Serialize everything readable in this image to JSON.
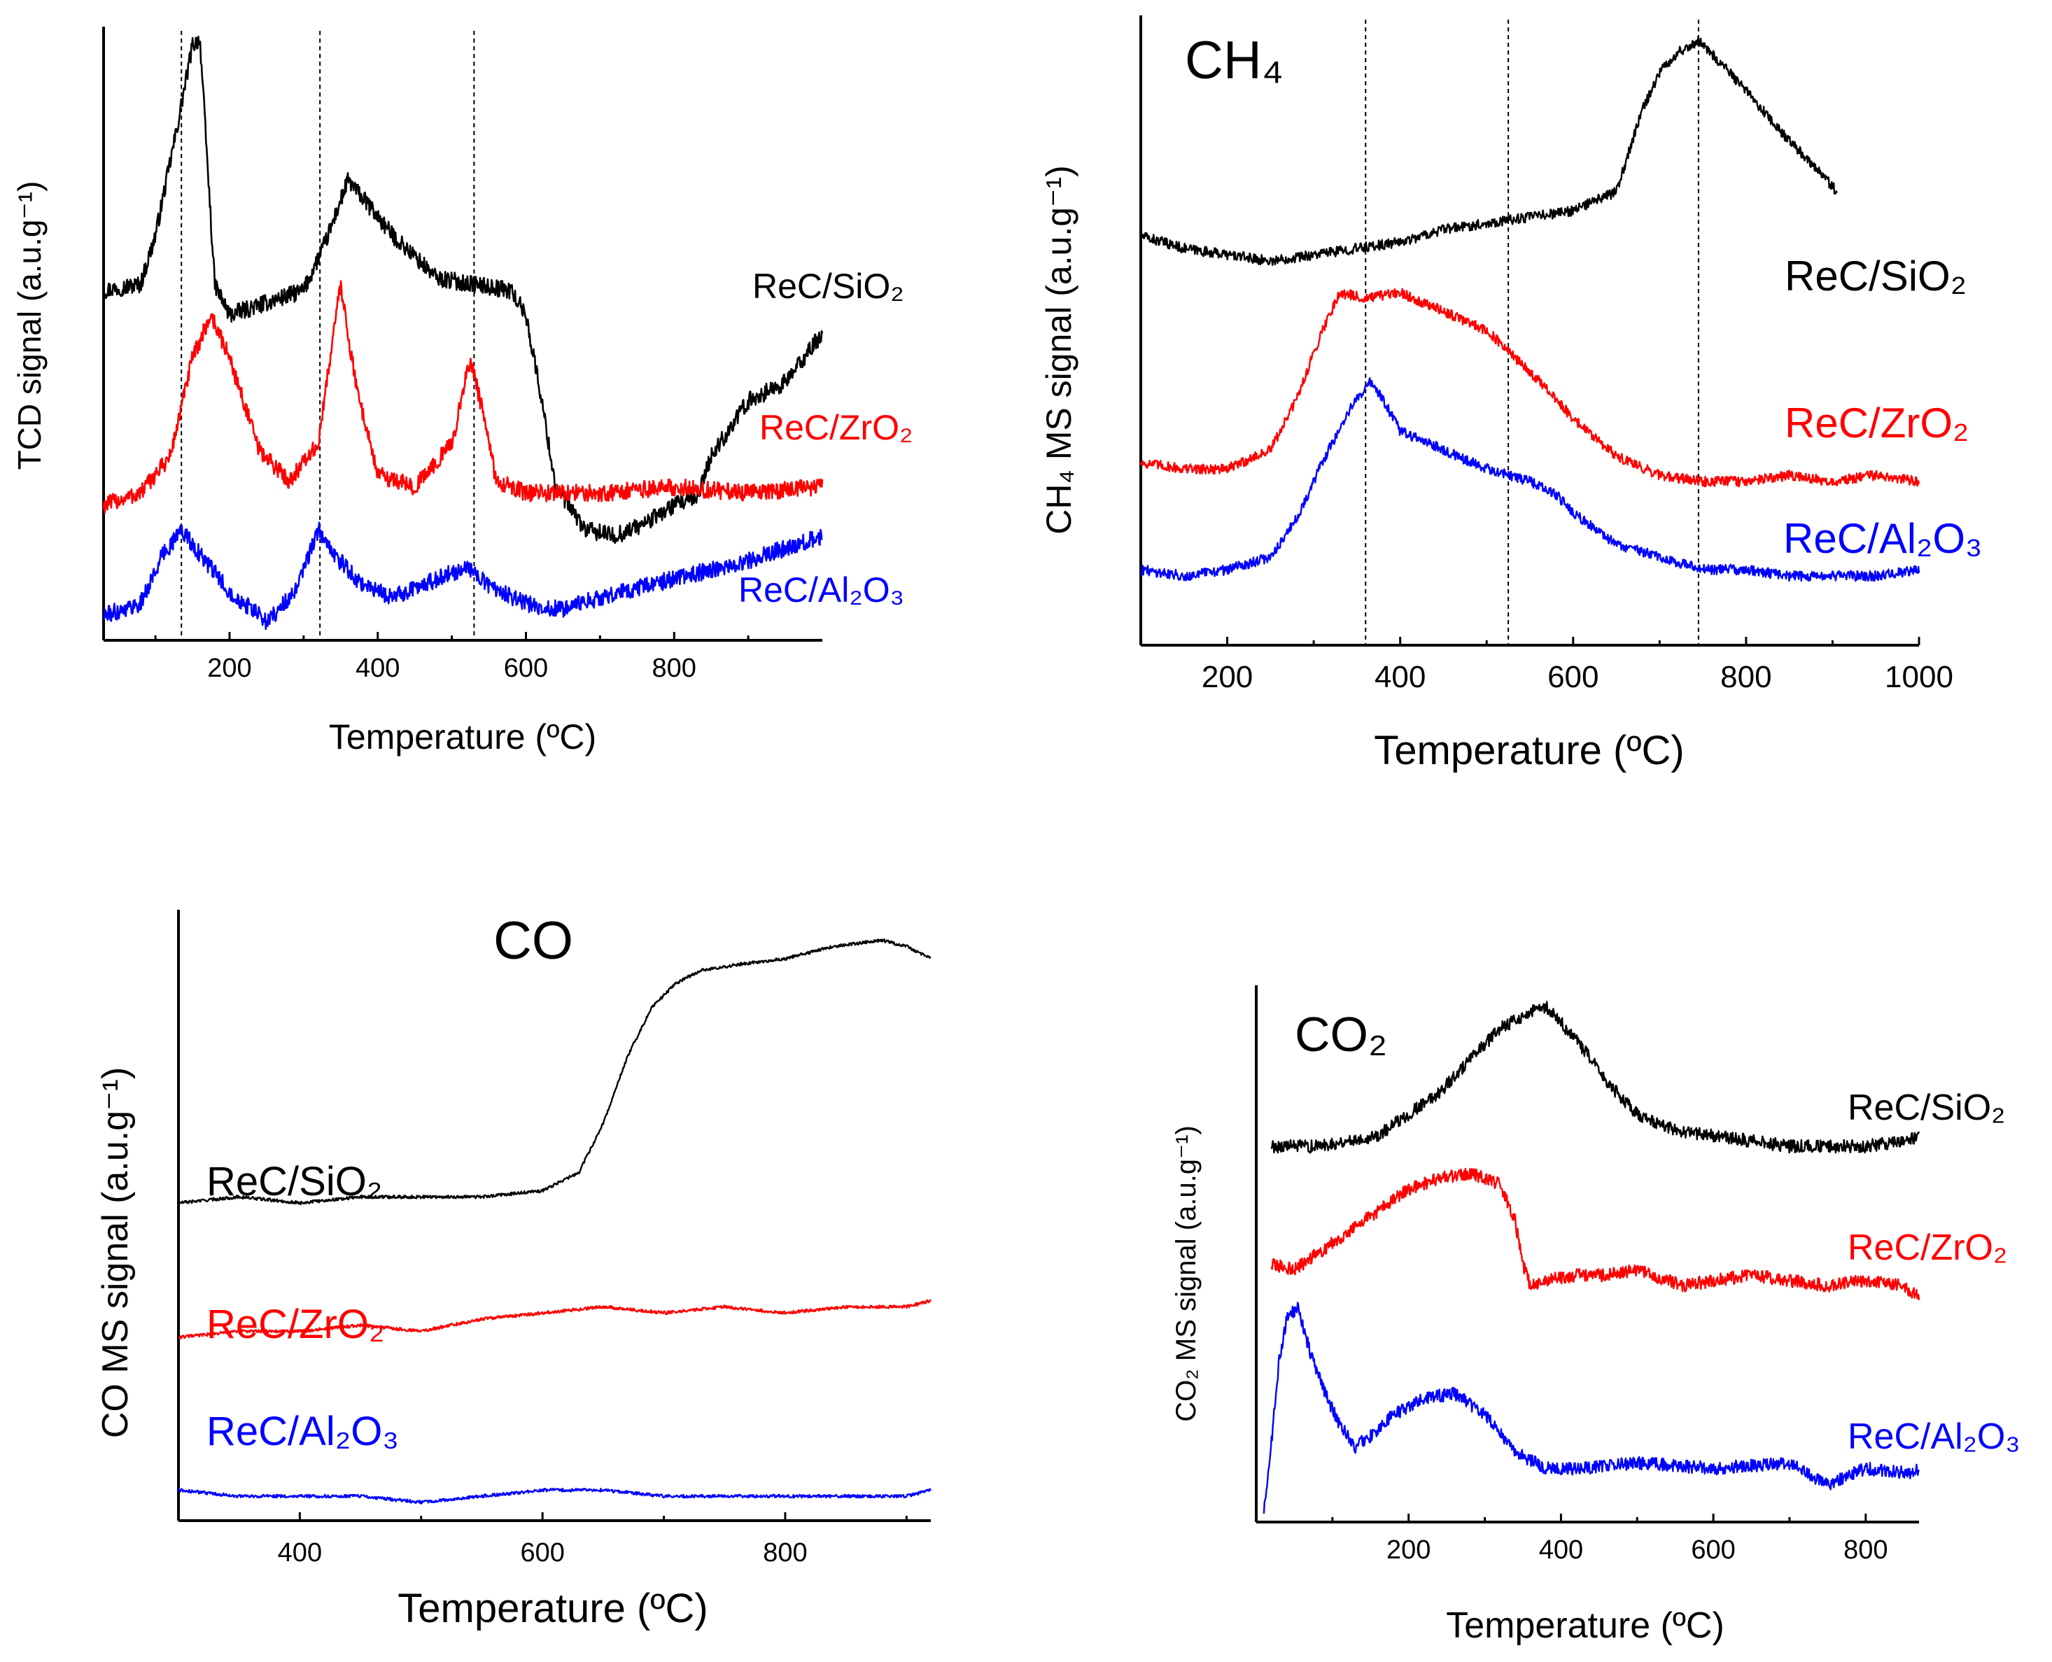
{
  "figure": {
    "colors": {
      "axis": "#000000",
      "SiO2": "#000000",
      "ZrO2": "#ff0000",
      "Al2O3": "#0000ff"
    }
  },
  "chart_data": [
    {
      "id": "tcd",
      "type": "line",
      "title": "",
      "xlabel": "Temperature (ºC)",
      "ylabel": "TCD signal (a.u.g⁻¹)",
      "ylabel_sup": "-1",
      "xlim": [
        30,
        1000
      ],
      "ylim": [
        0,
        100
      ],
      "xticks": [
        200,
        400,
        600,
        800
      ],
      "minor_xticks": [
        100,
        300,
        500,
        700,
        900
      ],
      "y_ticks_shown": false,
      "noise": 1.4,
      "vlines": [
        135,
        322,
        530
      ],
      "series": [
        {
          "name": "ReC/SiO2",
          "color": "#000000",
          "x": [
            30,
            80,
            100,
            130,
            150,
            160,
            170,
            180,
            200,
            250,
            300,
            330,
            360,
            380,
            420,
            480,
            530,
            580,
            600,
            620,
            640,
            680,
            720,
            760,
            800,
            830,
            850,
            900,
            950,
            1000
          ],
          "y": [
            57,
            58,
            66,
            84,
            97,
            98,
            78,
            58,
            53,
            55,
            57,
            65,
            75,
            72,
            66,
            59,
            58,
            57,
            53,
            40,
            25,
            18,
            17,
            19,
            22,
            23,
            30,
            39,
            42,
            50
          ]
        },
        {
          "name": "ReC/ZrO2",
          "color": "#ff0000",
          "x": [
            30,
            80,
            120,
            150,
            175,
            200,
            240,
            280,
            320,
            340,
            350,
            370,
            400,
            450,
            500,
            525,
            540,
            560,
            600,
            700,
            800,
            900,
            1000
          ],
          "y": [
            22,
            24,
            30,
            46,
            53,
            46,
            31,
            26,
            32,
            50,
            58,
            42,
            27,
            25,
            32,
            46,
            38,
            26,
            24,
            24,
            25,
            24,
            25
          ]
        },
        {
          "name": "ReC/Al2O3",
          "color": "#0000ff",
          "x": [
            30,
            80,
            110,
            135,
            160,
            200,
            250,
            290,
            310,
            320,
            340,
            380,
            420,
            480,
            520,
            550,
            600,
            650,
            700,
            800,
            900,
            1000
          ],
          "y": [
            4,
            6,
            14,
            18,
            14,
            8,
            3,
            8,
            15,
            18,
            14,
            9,
            7,
            10,
            12,
            9,
            6,
            5,
            7,
            10,
            13,
            17
          ]
        }
      ],
      "legend": [
        "ReC/SiO₂",
        "ReC/ZrO₂",
        "ReC/Al₂O₃"
      ]
    },
    {
      "id": "ch4",
      "type": "line",
      "title": "CH₄",
      "xlabel": "Temperature (ºC)",
      "ylabel": "CH₄ MS signal (a.u.g⁻¹)",
      "ylabel_sup": "-1",
      "xlim": [
        100,
        1000
      ],
      "ylim": [
        0,
        100
      ],
      "xticks": [
        200,
        400,
        600,
        800,
        1000
      ],
      "minor_xticks": [
        100,
        300,
        500,
        700,
        900
      ],
      "y_ticks_shown": false,
      "noise": 0.8,
      "vlines": [
        360,
        525,
        745
      ],
      "series": [
        {
          "name": "ReC/SiO2",
          "color": "#000000",
          "x": [
            100,
            150,
            200,
            250,
            300,
            350,
            400,
            450,
            500,
            550,
            600,
            650,
            680,
            700,
            720,
            745,
            760,
            800,
            850,
            880,
            905
          ],
          "y": [
            65,
            63,
            62,
            61,
            62,
            63,
            64,
            66,
            67,
            68,
            69,
            72,
            85,
            91,
            94,
            96,
            94,
            88,
            80,
            76,
            72
          ]
        },
        {
          "name": "ReC/ZrO2",
          "color": "#ff0000",
          "x": [
            100,
            150,
            200,
            250,
            280,
            310,
            330,
            360,
            400,
            450,
            500,
            530,
            560,
            600,
            650,
            700,
            750,
            800,
            850,
            900,
            950,
            1000
          ],
          "y": [
            29,
            28,
            28,
            31,
            39,
            50,
            56,
            55,
            56,
            53,
            50,
            46,
            42,
            36,
            30,
            27,
            26,
            26,
            27,
            26,
            27,
            26
          ]
        },
        {
          "name": "ReC/Al2O3",
          "color": "#0000ff",
          "x": [
            100,
            150,
            200,
            250,
            280,
            310,
            340,
            365,
            380,
            400,
            450,
            500,
            550,
            580,
            600,
            650,
            700,
            750,
            800,
            850,
            900,
            950,
            1000
          ],
          "y": [
            12,
            11,
            12,
            14,
            20,
            29,
            37,
            42,
            39,
            34,
            31,
            28,
            26,
            24,
            21,
            16,
            14,
            12,
            12,
            11,
            11,
            11,
            12
          ]
        }
      ],
      "legend": [
        "ReC/SiO₂",
        "ReC/ZrO₂",
        "ReC/Al₂O₃"
      ]
    },
    {
      "id": "co",
      "type": "line",
      "title": "CO",
      "xlabel": "Temperature (ºC)",
      "ylabel": "CO MS signal (a.u.g⁻¹)",
      "ylabel_sup": "-1",
      "xlim": [
        300,
        920
      ],
      "ylim": [
        0,
        100
      ],
      "xticks": [
        400,
        600,
        800
      ],
      "minor_xticks": [
        300,
        500,
        700,
        900
      ],
      "y_ticks_shown": false,
      "noise": 0.25,
      "vlines": [],
      "series": [
        {
          "name": "ReC/SiO2",
          "color": "#000000",
          "x": [
            300,
            350,
            400,
            450,
            500,
            550,
            600,
            630,
            650,
            670,
            690,
            710,
            730,
            760,
            800,
            840,
            880,
            900,
            920
          ],
          "y": [
            52,
            53,
            52,
            53,
            53,
            53,
            54,
            57,
            65,
            76,
            84,
            88,
            90,
            91,
            92,
            94,
            95,
            94,
            92
          ]
        },
        {
          "name": "ReC/ZrO2",
          "color": "#ff0000",
          "x": [
            300,
            350,
            400,
            450,
            500,
            550,
            600,
            650,
            700,
            750,
            800,
            850,
            900,
            920
          ],
          "y": [
            30,
            31,
            31,
            32,
            31,
            33,
            34,
            35,
            34,
            35,
            34,
            35,
            35,
            36
          ]
        },
        {
          "name": "ReC/Al2O3",
          "color": "#0000ff",
          "x": [
            300,
            350,
            400,
            450,
            500,
            550,
            600,
            650,
            700,
            750,
            800,
            850,
            900,
            920
          ],
          "y": [
            5,
            4,
            4,
            4,
            3,
            4,
            5,
            5,
            4,
            4,
            4,
            4,
            4,
            5
          ]
        }
      ],
      "legend": [
        "ReC/SiO₂",
        "ReC/ZrO₂",
        "ReC/Al₂O₃"
      ]
    },
    {
      "id": "co2",
      "type": "line",
      "title": "CO₂",
      "xlabel": "Temperature (ºC)",
      "ylabel": "CO₂ MS signal (a.u.g⁻¹)",
      "ylabel_sup": "-1",
      "xlim": [
        0,
        870
      ],
      "ylim": [
        0,
        100
      ],
      "xticks": [
        200,
        400,
        600,
        800
      ],
      "minor_xticks": [
        100,
        300,
        500,
        700
      ],
      "y_ticks_shown": false,
      "noise": 1.2,
      "vlines": [],
      "series": [
        {
          "name": "ReC/SiO2",
          "color": "#000000",
          "x": [
            20,
            80,
            120,
            160,
            200,
            240,
            280,
            320,
            360,
            380,
            400,
            430,
            460,
            500,
            550,
            600,
            650,
            700,
            750,
            800,
            850,
            870
          ],
          "y": [
            70,
            70,
            71,
            72,
            76,
            80,
            86,
            92,
            95,
            96,
            93,
            88,
            82,
            76,
            73,
            72,
            71,
            70,
            70,
            70,
            71,
            72
          ]
        },
        {
          "name": "ReC/ZrO2",
          "color": "#ff0000",
          "x": [
            20,
            50,
            80,
            120,
            160,
            200,
            240,
            280,
            320,
            340,
            350,
            360,
            380,
            420,
            460,
            500,
            560,
            600,
            650,
            700,
            750,
            800,
            850,
            870
          ],
          "y": [
            48,
            47,
            50,
            54,
            58,
            62,
            64,
            65,
            63,
            56,
            48,
            44,
            45,
            46,
            46,
            47,
            44,
            45,
            46,
            45,
            44,
            45,
            44,
            42
          ]
        },
        {
          "name": "ReC/Al2O3",
          "color": "#0000ff",
          "x": [
            10,
            20,
            30,
            40,
            55,
            70,
            90,
            110,
            130,
            150,
            180,
            220,
            260,
            300,
            340,
            380,
            430,
            500,
            600,
            700,
            750,
            800,
            860,
            870
          ],
          "y": [
            2,
            15,
            30,
            38,
            40,
            32,
            24,
            18,
            14,
            16,
            20,
            23,
            24,
            20,
            13,
            10,
            10,
            11,
            10,
            11,
            7,
            10,
            9,
            10
          ]
        }
      ],
      "legend": [
        "ReC/SiO₂",
        "ReC/ZrO₂",
        "ReC/Al₂O₃"
      ]
    }
  ]
}
